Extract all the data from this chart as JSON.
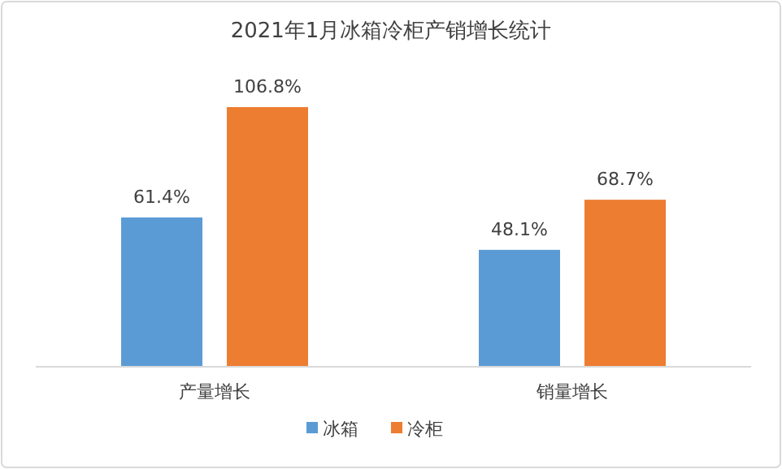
{
  "chart_data": {
    "type": "bar",
    "title": "2021年1月冰箱冷柜产销增长统计",
    "categories": [
      "产量增长",
      "销量增长"
    ],
    "series": [
      {
        "name": "冰箱",
        "color": "#5b9bd5",
        "values": [
          61.4,
          48.1
        ],
        "value_labels": [
          "61.4%",
          "48.1%"
        ]
      },
      {
        "name": "冷柜",
        "color": "#ed7d31",
        "values": [
          106.8,
          68.7
        ],
        "value_labels": [
          "106.8%",
          "68.7%"
        ]
      }
    ],
    "legend": "bottom"
  }
}
